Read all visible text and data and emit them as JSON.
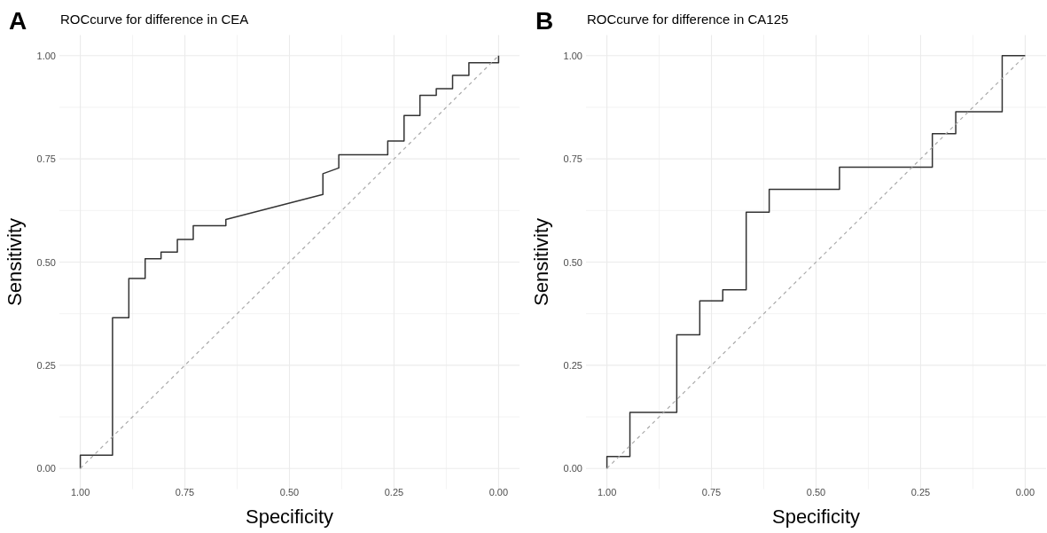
{
  "chart_data": [
    {
      "type": "line",
      "title": "ROCcurve for difference in CEA",
      "xlabel": "Specificity",
      "ylabel": "Sensitivity",
      "annotations": [
        "A"
      ],
      "xlim": [
        1.05,
        -0.05
      ],
      "ylim": [
        -0.05,
        1.05
      ],
      "xticks": [
        {
          "value": 1.0,
          "label": "1.00"
        },
        {
          "value": 0.875,
          "label": null
        },
        {
          "value": 0.75,
          "label": "0.75"
        },
        {
          "value": 0.625,
          "label": null
        },
        {
          "value": 0.5,
          "label": "0.50"
        },
        {
          "value": 0.375,
          "label": null
        },
        {
          "value": 0.25,
          "label": "0.25"
        },
        {
          "value": 0.125,
          "label": null
        },
        {
          "value": 0,
          "label": "0.00"
        }
      ],
      "yticks": [
        {
          "value": 0,
          "label": "0.00"
        },
        {
          "value": 0.125,
          "label": null
        },
        {
          "value": 0.25,
          "label": "0.25"
        },
        {
          "value": 0.375,
          "label": null
        },
        {
          "value": 0.5,
          "label": "0.50"
        },
        {
          "value": 0.625,
          "label": null
        },
        {
          "value": 0.75,
          "label": "0.75"
        },
        {
          "value": 0.875,
          "label": null
        },
        {
          "value": 1,
          "label": "1.00"
        }
      ],
      "grid": true,
      "series": [
        {
          "color": "#333333",
          "line_style": "solid",
          "x": [
            1,
            1,
            0.923,
            0.923,
            0.884,
            0.884,
            0.845,
            0.845,
            0.807,
            0.807,
            0.768,
            0.768,
            0.73,
            0.73,
            0.652,
            0.652,
            0.42,
            0.42,
            0.382,
            0.382,
            0.265,
            0.265,
            0.226,
            0.226,
            0.188,
            0.188,
            0.149,
            0.149,
            0.11,
            0.11,
            0.071,
            0.071,
            0,
            0
          ],
          "values": [
            0,
            0.032,
            0.032,
            0.365,
            0.365,
            0.46,
            0.46,
            0.508,
            0.508,
            0.524,
            0.524,
            0.555,
            0.555,
            0.588,
            0.588,
            0.603,
            0.664,
            0.714,
            0.728,
            0.76,
            0.76,
            0.793,
            0.793,
            0.855,
            0.855,
            0.904,
            0.904,
            0.92,
            0.92,
            0.952,
            0.952,
            0.983,
            0.983,
            1
          ]
        },
        {
          "color": "#aaaaaa",
          "line_style": "dashed",
          "x": [
            1,
            0
          ],
          "values": [
            0,
            1
          ]
        }
      ]
    },
    {
      "type": "line",
      "title": "ROCcurve for difference in CA125",
      "xlabel": "Specificity",
      "ylabel": "Sensitivity",
      "annotations": [
        "B"
      ],
      "xlim": [
        1.05,
        -0.05
      ],
      "ylim": [
        -0.05,
        1.05
      ],
      "xticks": [
        {
          "value": 1.0,
          "label": "1.00"
        },
        {
          "value": 0.875,
          "label": null
        },
        {
          "value": 0.75,
          "label": "0.75"
        },
        {
          "value": 0.625,
          "label": null
        },
        {
          "value": 0.5,
          "label": "0.50"
        },
        {
          "value": 0.375,
          "label": null
        },
        {
          "value": 0.25,
          "label": "0.25"
        },
        {
          "value": 0.125,
          "label": null
        },
        {
          "value": 0,
          "label": "0.00"
        }
      ],
      "yticks": [
        {
          "value": 0,
          "label": "0.00"
        },
        {
          "value": 0.125,
          "label": null
        },
        {
          "value": 0.25,
          "label": "0.25"
        },
        {
          "value": 0.375,
          "label": null
        },
        {
          "value": 0.5,
          "label": "0.50"
        },
        {
          "value": 0.625,
          "label": null
        },
        {
          "value": 0.75,
          "label": "0.75"
        },
        {
          "value": 0.875,
          "label": null
        },
        {
          "value": 1,
          "label": "1.00"
        }
      ],
      "grid": true,
      "series": [
        {
          "color": "#333333",
          "line_style": "solid",
          "x": [
            1,
            1,
            0.945,
            0.945,
            0.833,
            0.833,
            0.778,
            0.778,
            0.723,
            0.723,
            0.667,
            0.667,
            0.612,
            0.612,
            0.444,
            0.444,
            0.222,
            0.222,
            0.166,
            0.166,
            0.055,
            0.055,
            0
          ],
          "values": [
            0,
            0.029,
            0.029,
            0.136,
            0.136,
            0.324,
            0.324,
            0.406,
            0.406,
            0.433,
            0.433,
            0.621,
            0.621,
            0.676,
            0.676,
            0.73,
            0.73,
            0.811,
            0.811,
            0.864,
            0.864,
            1,
            1
          ]
        },
        {
          "color": "#aaaaaa",
          "line_style": "dashed",
          "x": [
            1,
            0
          ],
          "values": [
            0,
            1
          ]
        }
      ]
    }
  ]
}
